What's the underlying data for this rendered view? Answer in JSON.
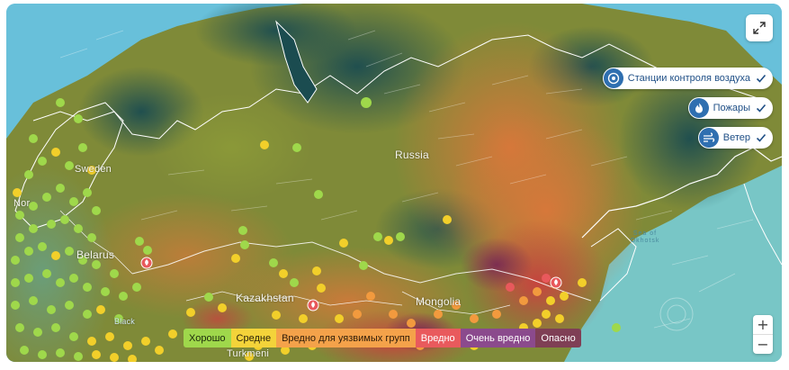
{
  "map": {
    "labels": {
      "russia": "Russia",
      "kazakhstan": "Kazakhstan",
      "mongolia": "Mongolia",
      "belarus": "Belarus",
      "turkmenistan": "Turkmeni",
      "sweden": "Sweden",
      "norway": "Nor",
      "black_sea": "Black",
      "sea_of_okhotsk": "Sea of Okhotsk"
    },
    "colors": {
      "ocean": "#6cc2dc",
      "ice_dark": "#1a4a52",
      "good": "#9fd84b",
      "moderate": "#f2cf2a",
      "unhealthy_sensitive": "#f29a3e",
      "unhealthy": "#e8595c",
      "very_unhealthy": "#8a3c78",
      "hazardous": "#7e3a4a"
    }
  },
  "controls": {
    "fullscreen_icon": "expand-icon",
    "layers": [
      {
        "label": "Станции контроля воздуха",
        "icon": "air-station-icon",
        "checked": true
      },
      {
        "label": "Пожары",
        "icon": "fire-icon",
        "checked": true
      },
      {
        "label": "Ветер",
        "icon": "wind-icon",
        "checked": true
      }
    ],
    "zoom_in": "+",
    "zoom_out": "−"
  },
  "legend": [
    {
      "label": "Хорошо",
      "bg": "#9fd84b",
      "fg": "#1c2a0c"
    },
    {
      "label": "Средне",
      "bg": "#f3d33a",
      "fg": "#2a230a"
    },
    {
      "label": "Вредно для уязвимых групп",
      "bg": "#f4a24a",
      "fg": "#2f1c08"
    },
    {
      "label": "Вредно",
      "bg": "#e95a5d",
      "fg": "#ffffff"
    },
    {
      "label": "Очень вредно",
      "bg": "#8b4a8d",
      "fg": "#ffffff"
    },
    {
      "label": "Опасно",
      "bg": "#7f3f55",
      "fg": "#ffffff"
    }
  ]
}
